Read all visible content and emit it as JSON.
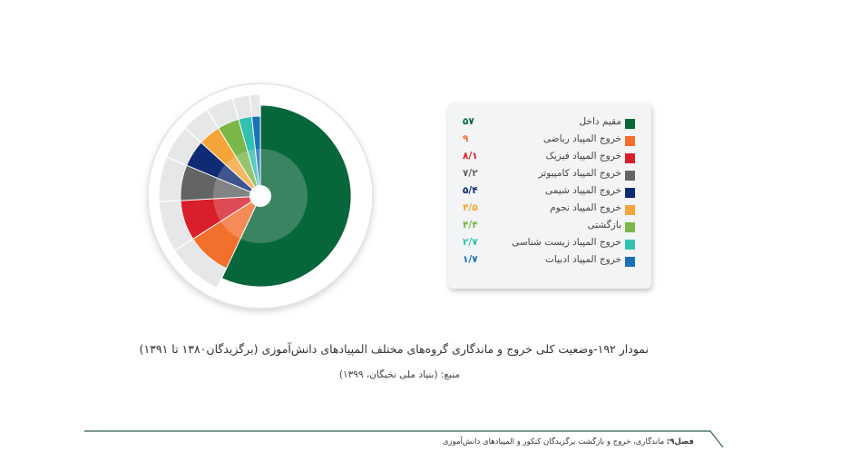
{
  "chart_data": {
    "type": "pie",
    "categories": [
      "مقیم داخل",
      "خروج المپیاد ریاضی",
      "خروج المپیاد فیزیک",
      "خروج المپیاد کامپیوتر",
      "خروج المپیاد شیمی",
      "خروج المپیاد نجوم",
      "بازگشتی",
      "خروج المپیاد زیست شناسی",
      "خروج المپیاد ادبیات"
    ],
    "values": [
      57,
      9,
      8.1,
      7.2,
      5.4,
      4.5,
      4.4,
      2.7,
      1.7
    ],
    "value_labels": [
      "۵۷",
      "۹",
      "۸/۱",
      "۷/۲",
      "۵/۴",
      "۴/۵",
      "۴/۴",
      "۲/۷",
      "۱/۷"
    ],
    "colors": [
      "#08673a",
      "#f36f2c",
      "#d81f2a",
      "#636466",
      "#0f2b73",
      "#f5a43a",
      "#7ab648",
      "#32c0b0",
      "#1a71b8"
    ],
    "title": "نمودار ۱۹۲-وضعیت کلی خروج و ماندگاری گروه‌های مختلف المپیادهای دانش‌آموزی (برگزیدگان۱۳۸۰ تا ۱۳۹۱)",
    "legend_position": "right"
  },
  "source": "منبع: (بنیاد ملی نخبگان، ۱۳۹۹)",
  "footer": {
    "chapter": "فصل۹:",
    "text": "ماندگاری، خروج و بازگشت برگزیدگان کنکور و المپیادهای دانش‌آموزی"
  }
}
